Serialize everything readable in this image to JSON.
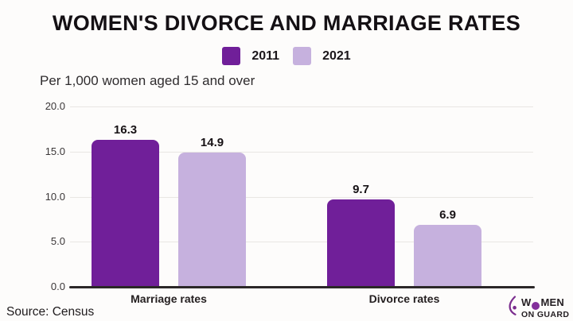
{
  "title": "WOMEN'S DIVORCE AND MARRIAGE RATES",
  "subtitle": "Per 1,000 women aged 15 and over",
  "source": "Source: Census",
  "colors": {
    "series_2011": "#701F99",
    "series_2021": "#C6B1DE",
    "background": "#FDFCFB",
    "gridline": "#E9E6E3",
    "axis_line": "#2B2728",
    "logo_accent": "#7B2D8E"
  },
  "chart_data": {
    "type": "bar",
    "categories": [
      "Marriage rates",
      "Divorce rates"
    ],
    "series": [
      {
        "name": "2011",
        "color": "#701F99",
        "values": [
          16.3,
          9.7
        ]
      },
      {
        "name": "2021",
        "color": "#C6B1DE",
        "values": [
          14.9,
          6.9
        ]
      }
    ],
    "title": "WOMEN'S DIVORCE AND MARRIAGE RATES",
    "subtitle": "Per 1,000 women aged 15 and over",
    "ylim": [
      0,
      20
    ],
    "yticks": [
      0,
      5,
      10,
      15,
      20
    ],
    "ytick_labels": [
      "0.0",
      "5.0",
      "10.0",
      "15.0",
      "20.0"
    ],
    "grid": true,
    "legend_position": "top",
    "value_labels": true
  },
  "logo": {
    "line1_pre": "W",
    "line1_o": "O",
    "line1_post": "MEN",
    "line2": "ON GUARD",
    "icon": "women-on-guard-icon"
  }
}
